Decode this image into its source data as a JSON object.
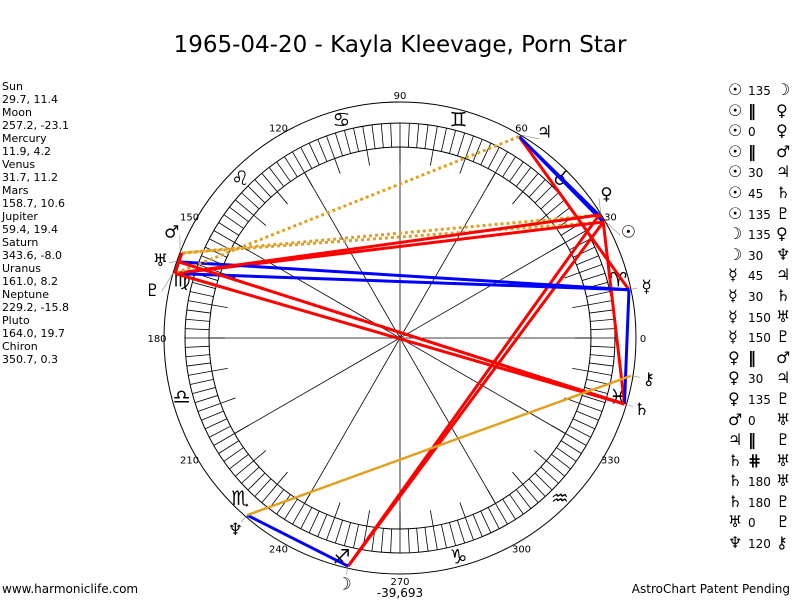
{
  "title": "1965-04-20 - Kayla Kleevage, Porn Star",
  "planets": [
    {
      "name": "Sun",
      "glyph": "☉",
      "lon": 29.7,
      "dec": 11.4,
      "coords": "29.7, 11.4"
    },
    {
      "name": "Moon",
      "glyph": "☽",
      "lon": 257.2,
      "dec": -23.1,
      "coords": "257.2, -23.1"
    },
    {
      "name": "Mercury",
      "glyph": "☿",
      "lon": 11.9,
      "dec": 4.2,
      "coords": "11.9, 4.2"
    },
    {
      "name": "Venus",
      "glyph": "♀",
      "lon": 31.7,
      "dec": 11.2,
      "coords": "31.7, 11.2"
    },
    {
      "name": "Mars",
      "glyph": "♂",
      "lon": 158.7,
      "dec": 10.6,
      "coords": "158.7, 10.6"
    },
    {
      "name": "Jupiter",
      "glyph": "♃",
      "lon": 59.4,
      "dec": 19.4,
      "coords": "59.4, 19.4"
    },
    {
      "name": "Saturn",
      "glyph": "♄",
      "lon": 343.6,
      "dec": -8.0,
      "coords": "343.6, -8.0"
    },
    {
      "name": "Uranus",
      "glyph": "♅",
      "lon": 161.0,
      "dec": 8.2,
      "coords": "161.0, 8.2"
    },
    {
      "name": "Neptune",
      "glyph": "♆",
      "lon": 229.2,
      "dec": -15.8,
      "coords": "229.2, -15.8"
    },
    {
      "name": "Pluto",
      "glyph": "♇",
      "lon": 164.0,
      "dec": 19.7,
      "coords": "164.0, 19.7"
    },
    {
      "name": "Chiron",
      "glyph": "⚷",
      "lon": 350.7,
      "dec": 0.3,
      "coords": "350.7, 0.3"
    }
  ],
  "aspects": [
    {
      "p1": "Sun",
      "aspect": "135",
      "p2": "Moon"
    },
    {
      "p1": "Sun",
      "aspect": "||",
      "p2": "Venus"
    },
    {
      "p1": "Sun",
      "aspect": "0",
      "p2": "Venus"
    },
    {
      "p1": "Sun",
      "aspect": "||",
      "p2": "Mars"
    },
    {
      "p1": "Sun",
      "aspect": "30",
      "p2": "Jupiter"
    },
    {
      "p1": "Sun",
      "aspect": "45",
      "p2": "Saturn"
    },
    {
      "p1": "Sun",
      "aspect": "135",
      "p2": "Pluto"
    },
    {
      "p1": "Moon",
      "aspect": "135",
      "p2": "Venus"
    },
    {
      "p1": "Moon",
      "aspect": "30",
      "p2": "Neptune"
    },
    {
      "p1": "Mercury",
      "aspect": "45",
      "p2": "Jupiter"
    },
    {
      "p1": "Mercury",
      "aspect": "30",
      "p2": "Saturn"
    },
    {
      "p1": "Mercury",
      "aspect": "150",
      "p2": "Uranus"
    },
    {
      "p1": "Mercury",
      "aspect": "150",
      "p2": "Pluto"
    },
    {
      "p1": "Venus",
      "aspect": "||",
      "p2": "Mars"
    },
    {
      "p1": "Venus",
      "aspect": "30",
      "p2": "Jupiter"
    },
    {
      "p1": "Venus",
      "aspect": "135",
      "p2": "Pluto"
    },
    {
      "p1": "Mars",
      "aspect": "0",
      "p2": "Uranus"
    },
    {
      "p1": "Jupiter",
      "aspect": "||",
      "p2": "Pluto"
    },
    {
      "p1": "Saturn",
      "aspect": "#",
      "p2": "Uranus"
    },
    {
      "p1": "Saturn",
      "aspect": "180",
      "p2": "Uranus"
    },
    {
      "p1": "Saturn",
      "aspect": "180",
      "p2": "Pluto"
    },
    {
      "p1": "Uranus",
      "aspect": "0",
      "p2": "Pluto"
    },
    {
      "p1": "Neptune",
      "aspect": "120",
      "p2": "Chiron"
    }
  ],
  "aspect_symbols": {
    "||": "‖",
    "#": "⋕"
  },
  "aspect_colors": {
    "red": "#ff0000",
    "blue": "#0000ff",
    "orange": "#e0a020"
  },
  "zodiac": [
    "♈",
    "♉",
    "♊",
    "♋",
    "♌",
    "♍",
    "♎",
    "♏",
    "♐",
    "♑",
    "♒",
    "♓"
  ],
  "degree_labels": [
    "0",
    "30",
    "60",
    "90",
    "120",
    "150",
    "180",
    "210",
    "240",
    "270",
    "300",
    "330"
  ],
  "footer": {
    "left": "www.harmoniclife.com",
    "center": "-39,693",
    "right": "AstroChart Patent Pending"
  }
}
